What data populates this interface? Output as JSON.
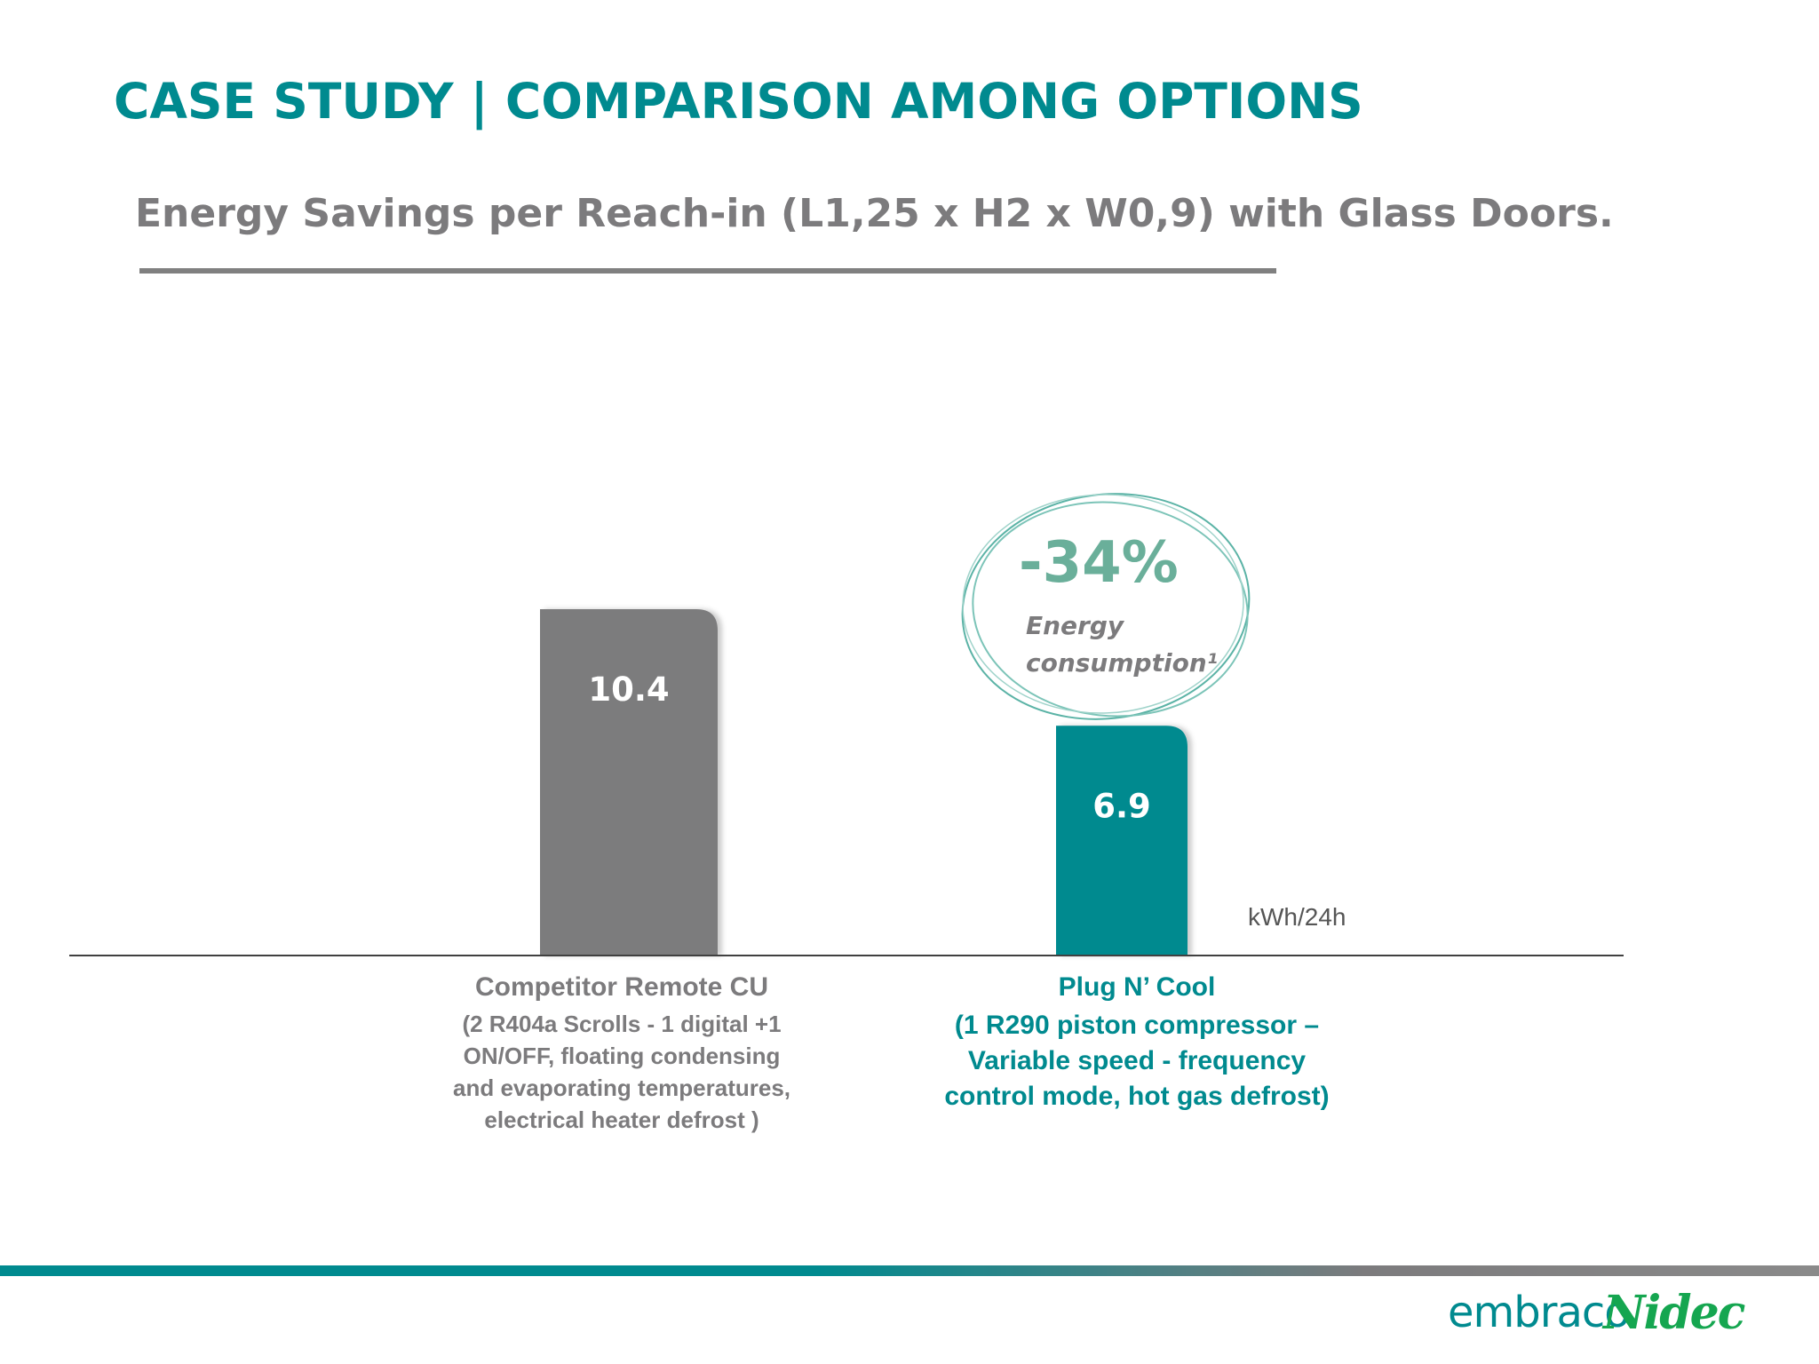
{
  "slide": {
    "title": "CASE STUDY | COMPARISON AMONG OPTIONS",
    "subtitle": "Energy Savings per Reach-in (L1,25 x H2 x W0,9) with Glass Doors."
  },
  "chart_data": {
    "type": "bar",
    "categories": [
      "Competitor Remote CU",
      "Plug N’ Cool"
    ],
    "category_details": [
      [
        "(2 R404a Scrolls  - 1 digital +1",
        "ON/OFF, floating condensing",
        "and evaporating temperatures,",
        "electrical heater defrost )"
      ],
      [
        "(1 R290 piston compressor –",
        "Variable speed - frequency",
        "control mode, hot gas defrost)"
      ]
    ],
    "values": [
      10.4,
      6.9
    ],
    "value_labels": [
      "10.4",
      "6.9"
    ],
    "colors": [
      "#7c7b7d",
      "#008a8f"
    ],
    "unit_label": "kWh/24h",
    "ylim": [
      0,
      12
    ],
    "grid": false,
    "legend": "none",
    "annotation": {
      "value": "-34%",
      "text_line1": "Energy",
      "text_line2": "consumption¹",
      "value_color": "#6aaf9a",
      "ring_color": "#5bb3a6"
    }
  },
  "logos": {
    "embraco": "embraco",
    "nidec": "Nidec"
  },
  "colors": {
    "teal": "#008a8f",
    "grey": "#7c7b7d",
    "nidec_green": "#15a650"
  }
}
